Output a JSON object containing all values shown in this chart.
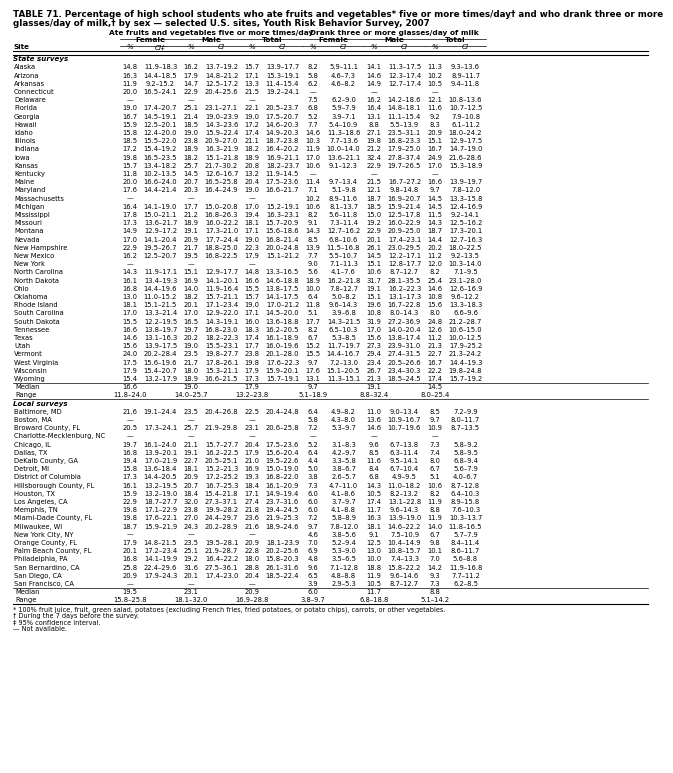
{
  "title_line1": "TABLE 71. Percentage of high school students who ate fruits and vegetables* five or more times/day† and who drank three or more",
  "title_line2": "glasses/day of milk,† by sex — selected U.S. sites, Youth Risk Behavior Survey, 2007",
  "col_headers": [
    "Ate fruits and vegetables five or more times/day",
    "Drank three or more glasses/day of milk"
  ],
  "sub_headers": [
    "Female",
    "Male",
    "Total",
    "Female",
    "Male",
    "Total"
  ],
  "col_labels": [
    "%",
    "CI‡",
    "%",
    "CI",
    "%",
    "CI",
    "%",
    "CI",
    "%",
    "CI",
    "%",
    "CI"
  ],
  "site_label": "Site",
  "section1": "State surveys",
  "rows_state": [
    [
      "Alaska",
      "14.8",
      "11.9–18.3",
      "16.2",
      "13.7–19.2",
      "15.7",
      "13.9–17.7",
      "8.2",
      "5.9–11.1",
      "14.1",
      "11.3–17.5",
      "11.3",
      "9.3–13.6"
    ],
    [
      "Arizona",
      "16.3",
      "14.4–18.5",
      "17.9",
      "14.8–21.2",
      "17.1",
      "15.3–19.1",
      "5.8",
      "4.6–7.3",
      "14.6",
      "12.3–17.4",
      "10.2",
      "8.9–11.7"
    ],
    [
      "Arkansas",
      "11.9",
      "9.2–15.2",
      "14.7",
      "12.5–17.2",
      "13.3",
      "11.4–15.4",
      "6.2",
      "4.6–8.2",
      "14.9",
      "12.7–17.4",
      "10.5",
      "9.4–11.8"
    ],
    [
      "Connecticut",
      "20.0",
      "16.5–24.1",
      "22.9",
      "20.4–25.6",
      "21.5",
      "19.2–24.1",
      "—",
      "",
      "—",
      "",
      "—",
      ""
    ],
    [
      "Delaware",
      "—",
      "",
      "—",
      "",
      "—",
      "",
      "7.5",
      "6.2–9.0",
      "16.2",
      "14.2–18.6",
      "12.1",
      "10.8–13.6"
    ],
    [
      "Florida",
      "19.0",
      "17.4–20.7",
      "25.1",
      "23.1–27.1",
      "22.1",
      "20.5–23.7",
      "6.8",
      "5.9–7.9",
      "16.4",
      "14.8–18.1",
      "11.6",
      "10.7–12.5"
    ],
    [
      "Georgia",
      "16.7",
      "14.5–19.1",
      "21.4",
      "19.0–23.9",
      "19.0",
      "17.5–20.7",
      "5.2",
      "3.9–7.1",
      "13.1",
      "11.1–15.4",
      "9.2",
      "7.9–10.8"
    ],
    [
      "Hawaii",
      "15.9",
      "12.5–20.1",
      "18.5",
      "14.3–23.6",
      "17.2",
      "14.6–20.3",
      "7.7",
      "5.4–10.9",
      "8.8",
      "5.5–13.9",
      "8.3",
      "6.1–11.2"
    ],
    [
      "Idaho",
      "15.8",
      "12.4–20.0",
      "19.0",
      "15.9–22.4",
      "17.4",
      "14.9–20.3",
      "14.6",
      "11.3–18.6",
      "27.1",
      "23.5–31.1",
      "20.9",
      "18.0–24.2"
    ],
    [
      "Illinois",
      "18.5",
      "15.5–22.0",
      "23.8",
      "20.9–27.0",
      "21.1",
      "18.7–23.8",
      "10.3",
      "7.7–13.6",
      "19.8",
      "16.8–23.3",
      "15.1",
      "12.9–17.5"
    ],
    [
      "Indiana",
      "17.2",
      "15.4–19.2",
      "18.9",
      "16.3–21.9",
      "18.2",
      "16.4–20.2",
      "11.9",
      "10.0–14.0",
      "21.2",
      "17.9–25.0",
      "16.7",
      "14.7–19.0"
    ],
    [
      "Iowa",
      "19.8",
      "16.5–23.5",
      "18.2",
      "15.1–21.8",
      "18.9",
      "16.9–21.1",
      "17.0",
      "13.6–21.1",
      "32.4",
      "27.8–37.4",
      "24.9",
      "21.6–28.6"
    ],
    [
      "Kansas",
      "15.7",
      "13.4–18.2",
      "25.7",
      "21.7–30.2",
      "20.8",
      "18.2–23.7",
      "10.6",
      "9.1–12.3",
      "22.9",
      "19.7–26.5",
      "17.0",
      "15.3–18.9"
    ],
    [
      "Kentucky",
      "11.8",
      "10.2–13.5",
      "14.5",
      "12.6–16.7",
      "13.2",
      "11.9–14.5",
      "—",
      "",
      "—",
      "",
      "—",
      ""
    ],
    [
      "Maine",
      "20.0",
      "16.6–24.0",
      "20.7",
      "16.5–25.8",
      "20.4",
      "17.5–23.6",
      "11.4",
      "9.7–13.4",
      "21.5",
      "16.7–27.2",
      "16.6",
      "13.9–19.7"
    ],
    [
      "Maryland",
      "17.6",
      "14.4–21.4",
      "20.3",
      "16.4–24.9",
      "19.0",
      "16.6–21.7",
      "7.1",
      "5.1–9.8",
      "12.1",
      "9.8–14.8",
      "9.7",
      "7.8–12.0"
    ],
    [
      "Massachusetts",
      "—",
      "",
      "—",
      "",
      "—",
      "",
      "10.2",
      "8.9–11.6",
      "18.7",
      "16.9–20.7",
      "14.5",
      "13.3–15.8"
    ],
    [
      "Michigan",
      "16.4",
      "14.1–19.0",
      "17.7",
      "15.0–20.8",
      "17.0",
      "15.2–19.1",
      "10.6",
      "8.1–13.7",
      "18.5",
      "15.9–21.4",
      "14.5",
      "12.4–16.9"
    ],
    [
      "Mississippi",
      "17.8",
      "15.0–21.1",
      "21.2",
      "16.8–26.3",
      "19.4",
      "16.3–23.1",
      "8.2",
      "5.6–11.8",
      "15.0",
      "12.5–17.8",
      "11.5",
      "9.2–14.1"
    ],
    [
      "Missouri",
      "17.3",
      "13.6–21.7",
      "18.9",
      "16.0–22.2",
      "18.1",
      "15.7–20.9",
      "9.1",
      "7.3–11.4",
      "19.2",
      "16.0–22.9",
      "14.3",
      "12.5–16.2"
    ],
    [
      "Montana",
      "14.9",
      "12.9–17.2",
      "19.1",
      "17.3–21.0",
      "17.1",
      "15.6–18.6",
      "14.3",
      "12.7–16.2",
      "22.9",
      "20.9–25.0",
      "18.7",
      "17.3–20.1"
    ],
    [
      "Nevada",
      "17.0",
      "14.1–20.4",
      "20.9",
      "17.7–24.4",
      "19.0",
      "16.8–21.4",
      "8.5",
      "6.8–10.6",
      "20.1",
      "17.4–23.1",
      "14.4",
      "12.7–16.3"
    ],
    [
      "New Hampshire",
      "22.9",
      "19.5–26.7",
      "21.7",
      "18.8–25.0",
      "22.3",
      "20.0–24.8",
      "13.9",
      "11.5–16.8",
      "26.1",
      "23.0–29.5",
      "20.2",
      "18.0–22.5"
    ],
    [
      "New Mexico",
      "16.2",
      "12.5–20.7",
      "19.5",
      "16.8–22.5",
      "17.9",
      "15.1–21.2",
      "7.7",
      "5.5–10.7",
      "14.5",
      "12.2–17.1",
      "11.2",
      "9.2–13.5"
    ],
    [
      "New York",
      "—",
      "",
      "—",
      "",
      "—",
      "",
      "9.0",
      "7.1–11.3",
      "15.1",
      "12.8–17.7",
      "12.0",
      "10.3–14.0"
    ],
    [
      "North Carolina",
      "14.3",
      "11.9–17.1",
      "15.1",
      "12.9–17.7",
      "14.8",
      "13.3–16.5",
      "5.6",
      "4.1–7.6",
      "10.6",
      "8.7–12.7",
      "8.2",
      "7.1–9.5"
    ],
    [
      "North Dakota",
      "16.1",
      "13.4–19.3",
      "16.9",
      "14.1–20.1",
      "16.6",
      "14.6–18.8",
      "18.9",
      "16.2–21.8",
      "31.7",
      "28.1–35.5",
      "25.4",
      "23.1–28.0"
    ],
    [
      "Ohio",
      "16.8",
      "14.4–19.6",
      "14.0",
      "11.9–16.4",
      "15.5",
      "13.8–17.5",
      "10.0",
      "7.8–12.7",
      "19.1",
      "16.2–22.3",
      "14.6",
      "12.6–16.9"
    ],
    [
      "Oklahoma",
      "13.0",
      "11.0–15.2",
      "18.2",
      "15.7–21.1",
      "15.7",
      "14.1–17.5",
      "6.4",
      "5.0–8.2",
      "15.1",
      "13.1–17.3",
      "10.8",
      "9.6–12.2"
    ],
    [
      "Rhode Island",
      "18.1",
      "15.1–21.5",
      "20.1",
      "17.1–23.4",
      "19.0",
      "17.0–21.2",
      "11.8",
      "9.6–14.3",
      "19.6",
      "16.7–22.8",
      "15.6",
      "13.3–18.3"
    ],
    [
      "South Carolina",
      "17.0",
      "13.3–21.4",
      "17.0",
      "12.9–22.0",
      "17.1",
      "14.5–20.0",
      "5.1",
      "3.9–6.8",
      "10.8",
      "8.0–14.3",
      "8.0",
      "6.6–9.6"
    ],
    [
      "South Dakota",
      "15.5",
      "12.2–19.5",
      "16.5",
      "14.3–19.1",
      "16.0",
      "13.6–18.8",
      "17.7",
      "14.3–21.5",
      "31.9",
      "27.2–36.9",
      "24.8",
      "21.2–28.7"
    ],
    [
      "Tennessee",
      "16.6",
      "13.8–19.7",
      "19.7",
      "16.8–23.0",
      "18.3",
      "16.2–20.5",
      "8.2",
      "6.5–10.3",
      "17.0",
      "14.0–20.4",
      "12.6",
      "10.6–15.0"
    ],
    [
      "Texas",
      "14.6",
      "13.1–16.3",
      "20.2",
      "18.2–22.3",
      "17.4",
      "16.1–18.9",
      "6.7",
      "5.3–8.5",
      "15.6",
      "13.8–17.4",
      "11.2",
      "10.0–12.5"
    ],
    [
      "Utah",
      "15.6",
      "13.9–17.5",
      "19.0",
      "15.5–23.1",
      "17.7",
      "16.0–19.6",
      "15.2",
      "11.7–19.7",
      "27.3",
      "23.9–31.0",
      "21.3",
      "17.9–25.2"
    ],
    [
      "Vermont",
      "24.0",
      "20.2–28.4",
      "23.5",
      "19.8–27.7",
      "23.8",
      "20.1–28.0",
      "15.5",
      "14.4–16.7",
      "29.4",
      "27.4–31.5",
      "22.7",
      "21.3–24.2"
    ],
    [
      "West Virginia",
      "17.5",
      "15.6–19.6",
      "21.7",
      "17.8–26.1",
      "19.8",
      "17.6–22.3",
      "9.7",
      "7.2–13.0",
      "23.4",
      "20.5–26.6",
      "16.7",
      "14.4–19.3"
    ],
    [
      "Wisconsin",
      "17.9",
      "15.4–20.7",
      "18.0",
      "15.3–21.1",
      "17.9",
      "15.9–20.1",
      "17.6",
      "15.1–20.5",
      "26.7",
      "23.4–30.3",
      "22.2",
      "19.8–24.8"
    ],
    [
      "Wyoming",
      "15.4",
      "13.2–17.9",
      "18.9",
      "16.6–21.5",
      "17.3",
      "15.7–19.1",
      "13.1",
      "11.3–15.1",
      "21.3",
      "18.5–24.5",
      "17.4",
      "15.7–19.2"
    ]
  ],
  "median_state": [
    "Median",
    "16.6",
    "",
    "19.0",
    "",
    "17.9",
    "",
    "9.7",
    "",
    "19.1",
    "",
    "14.5",
    ""
  ],
  "range_state": [
    "Range",
    "11.8–24.0",
    "",
    "14.0–25.7",
    "",
    "13.2–23.8",
    "",
    "5.1–18.9",
    "",
    "8.8–32.4",
    "",
    "8.0–25.4",
    ""
  ],
  "section2": "Local surveys",
  "rows_local": [
    [
      "Baltimore, MD",
      "21.6",
      "19.1–24.4",
      "23.5",
      "20.4–26.8",
      "22.5",
      "20.4–24.8",
      "6.4",
      "4.9–8.2",
      "11.0",
      "9.0–13.4",
      "8.5",
      "7.2–9.9"
    ],
    [
      "Boston, MA",
      "—",
      "",
      "—",
      "",
      "—",
      "",
      "5.8",
      "4.3–8.0",
      "13.6",
      "10.9–16.7",
      "9.7",
      "8.0–11.7"
    ],
    [
      "Broward County, FL",
      "20.5",
      "17.3–24.1",
      "25.7",
      "21.9–29.8",
      "23.1",
      "20.6–25.8",
      "7.2",
      "5.3–9.7",
      "14.6",
      "10.7–19.6",
      "10.9",
      "8.7–13.5"
    ],
    [
      "Charlotte-Mecklenburg, NC",
      "—",
      "",
      "—",
      "",
      "—",
      "",
      "—",
      "",
      "—",
      "",
      "—",
      ""
    ],
    [
      "Chicago, IL",
      "19.7",
      "16.1–24.0",
      "21.1",
      "15.7–27.7",
      "20.4",
      "17.5–23.6",
      "5.2",
      "3.1–8.3",
      "9.6",
      "6.7–13.8",
      "7.3",
      "5.8–9.2"
    ],
    [
      "Dallas, TX",
      "16.8",
      "13.9–20.1",
      "19.1",
      "16.2–22.5",
      "17.9",
      "15.6–20.4",
      "6.4",
      "4.2–9.7",
      "8.5",
      "6.3–11.4",
      "7.4",
      "5.8–9.5"
    ],
    [
      "DeKalb County, GA",
      "19.4",
      "17.0–21.9",
      "22.7",
      "20.5–25.1",
      "21.0",
      "19.5–22.6",
      "4.4",
      "3.3–5.8",
      "11.6",
      "9.5–14.1",
      "8.0",
      "6.8–9.4"
    ],
    [
      "Detroit, MI",
      "15.8",
      "13.6–18.4",
      "18.1",
      "15.2–21.3",
      "16.9",
      "15.0–19.0",
      "5.0",
      "3.8–6.7",
      "8.4",
      "6.7–10.4",
      "6.7",
      "5.6–7.9"
    ],
    [
      "District of Columbia",
      "17.3",
      "14.4–20.5",
      "20.9",
      "17.2–25.2",
      "19.3",
      "16.8–22.0",
      "3.8",
      "2.6–5.7",
      "6.8",
      "4.9–9.5",
      "5.1",
      "4.0–6.7"
    ],
    [
      "Hillsborough County, FL",
      "16.1",
      "13.2–19.5",
      "20.7",
      "16.7–25.3",
      "18.4",
      "16.1–20.9",
      "7.3",
      "4.7–11.0",
      "14.3",
      "11.0–18.2",
      "10.6",
      "8.7–12.8"
    ],
    [
      "Houston, TX",
      "15.9",
      "13.2–19.0",
      "18.4",
      "15.4–21.8",
      "17.1",
      "14.9–19.4",
      "6.0",
      "4.1–8.6",
      "10.5",
      "8.2–13.2",
      "8.2",
      "6.4–10.3"
    ],
    [
      "Los Angeles, CA",
      "22.9",
      "18.7–27.7",
      "32.0",
      "27.3–37.1",
      "27.4",
      "23.7–31.6",
      "6.0",
      "3.7–9.7",
      "17.4",
      "13.1–22.8",
      "11.9",
      "8.9–15.8"
    ],
    [
      "Memphis, TN",
      "19.8",
      "17.1–22.9",
      "23.8",
      "19.9–28.2",
      "21.8",
      "19.4–24.5",
      "6.0",
      "4.1–8.8",
      "11.7",
      "9.6–14.3",
      "8.8",
      "7.6–10.3"
    ],
    [
      "Miami-Dade County, FL",
      "19.8",
      "17.6–22.1",
      "27.0",
      "24.4–29.7",
      "23.6",
      "21.9–25.3",
      "7.2",
      "5.8–8.9",
      "16.3",
      "13.9–19.0",
      "11.9",
      "10.3–13.7"
    ],
    [
      "Milwaukee, WI",
      "18.7",
      "15.9–21.9",
      "24.3",
      "20.2–28.9",
      "21.6",
      "18.9–24.6",
      "9.7",
      "7.8–12.0",
      "18.1",
      "14.6–22.2",
      "14.0",
      "11.8–16.5"
    ],
    [
      "New York City, NY",
      "—",
      "",
      "—",
      "",
      "—",
      "",
      "4.6",
      "3.8–5.6",
      "9.1",
      "7.5–10.9",
      "6.7",
      "5.7–7.9"
    ],
    [
      "Orange County, FL",
      "17.9",
      "14.8–21.5",
      "23.5",
      "19.5–28.1",
      "20.9",
      "18.1–23.9",
      "7.0",
      "5.2–9.4",
      "12.5",
      "10.4–14.9",
      "9.8",
      "8.4–11.4"
    ],
    [
      "Palm Beach County, FL",
      "20.1",
      "17.2–23.4",
      "25.1",
      "21.9–28.7",
      "22.8",
      "20.2–25.6",
      "6.9",
      "5.3–9.0",
      "13.0",
      "10.8–15.7",
      "10.1",
      "8.6–11.7"
    ],
    [
      "Philadelphia, PA",
      "16.8",
      "14.1–19.9",
      "19.2",
      "16.4–22.2",
      "18.0",
      "15.8–20.3",
      "4.8",
      "3.5–6.5",
      "10.0",
      "7.4–13.3",
      "7.0",
      "5.6–8.8"
    ],
    [
      "San Bernardino, CA",
      "25.8",
      "22.4–29.6",
      "31.6",
      "27.5–36.1",
      "28.8",
      "26.1–31.6",
      "9.6",
      "7.1–12.8",
      "18.8",
      "15.8–22.2",
      "14.2",
      "11.9–16.8"
    ],
    [
      "San Diego, CA",
      "20.9",
      "17.9–24.3",
      "20.1",
      "17.4–23.0",
      "20.4",
      "18.5–22.4",
      "6.5",
      "4.8–8.8",
      "11.9",
      "9.6–14.6",
      "9.3",
      "7.7–11.2"
    ],
    [
      "San Francisco, CA",
      "—",
      "",
      "—",
      "",
      "—",
      "",
      "3.9",
      "2.9–5.3",
      "10.5",
      "8.7–12.7",
      "7.3",
      "6.2–8.5"
    ]
  ],
  "median_local": [
    "Median",
    "19.5",
    "",
    "23.1",
    "",
    "20.9",
    "",
    "6.0",
    "",
    "11.7",
    "",
    "8.8",
    ""
  ],
  "range_local": [
    "Range",
    "15.8–25.8",
    "",
    "18.1–32.0",
    "",
    "16.9–28.8",
    "",
    "3.8–9.7",
    "",
    "6.8–18.8",
    "",
    "5.1–14.2",
    ""
  ],
  "footnotes": [
    "* 100% fruit juice, fruit, green salad, potatoes (excluding French fries, fried potatoes, or potato chips), carrots, or other vegetables.",
    "† During the 7 days before the survey.",
    "‡ 95% confidence interval.",
    "— Not available."
  ]
}
